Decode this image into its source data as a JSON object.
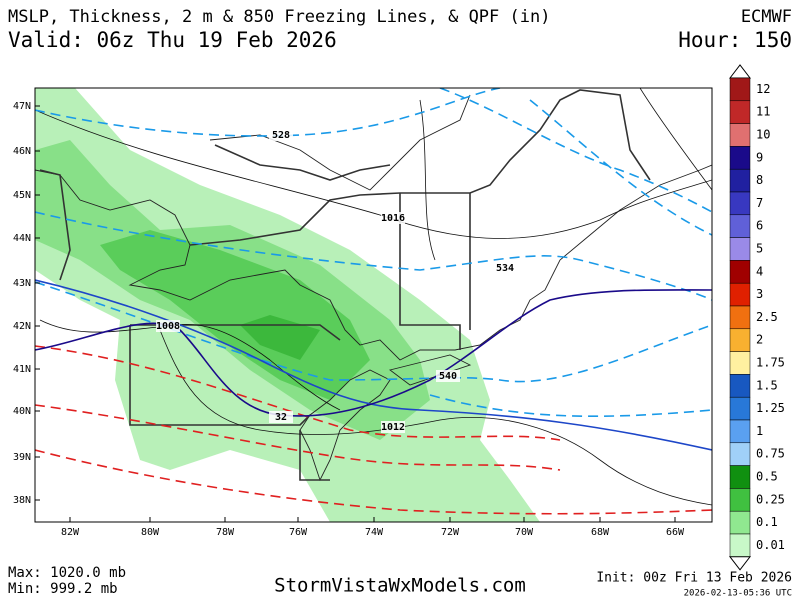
{
  "header": {
    "title": "MSLP, Thickness, 2 m & 850 Freezing Lines, & QPF (in)",
    "model": "ECMWF",
    "valid": "Valid: 06z Thu 19 Feb 2026",
    "hour": "Hour: 150"
  },
  "map": {
    "lat_labels": [
      "47N",
      "46N",
      "45N",
      "44N",
      "43N",
      "42N",
      "41N",
      "40N",
      "39N",
      "38N"
    ],
    "lon_labels": [
      "82W",
      "80W",
      "78W",
      "76W",
      "74W",
      "72W",
      "70W",
      "68W",
      "66W"
    ],
    "contour_labels": [
      "528",
      "534",
      "540",
      "1016",
      "1008",
      "1012",
      "32"
    ]
  },
  "legend": {
    "levels": [
      {
        "label": "12",
        "color": "#a01818"
      },
      {
        "label": "11",
        "color": "#c02828"
      },
      {
        "label": "10",
        "color": "#e07070"
      },
      {
        "label": "9",
        "color": "#1a0a8a"
      },
      {
        "label": "8",
        "color": "#2020a0"
      },
      {
        "label": "7",
        "color": "#3838c0"
      },
      {
        "label": "6",
        "color": "#6060d8"
      },
      {
        "label": "5",
        "color": "#9a8ae8"
      },
      {
        "label": "4",
        "color": "#a00000"
      },
      {
        "label": "3",
        "color": "#e02000"
      },
      {
        "label": "2.5",
        "color": "#f07010"
      },
      {
        "label": "2",
        "color": "#f8b030"
      },
      {
        "label": "1.75",
        "color": "#fff0a0"
      },
      {
        "label": "1.5",
        "color": "#1858c0"
      },
      {
        "label": "1.25",
        "color": "#2878d8"
      },
      {
        "label": "1",
        "color": "#5aa0f0"
      },
      {
        "label": "0.75",
        "color": "#a0d0f8"
      },
      {
        "label": "0.5",
        "color": "#109010"
      },
      {
        "label": "0.25",
        "color": "#40c040"
      },
      {
        "label": "0.1",
        "color": "#90e890"
      },
      {
        "label": "0.01",
        "color": "#c8f8c8"
      }
    ]
  },
  "footer": {
    "max": "Max: 1020.0 mb",
    "min": "Min: 999.2 mb",
    "site": "StormVistaWxModels.com",
    "init": "Init: 00z Fri 13 Feb 2026",
    "stamp": "2026-02-13-05:36 UTC"
  }
}
